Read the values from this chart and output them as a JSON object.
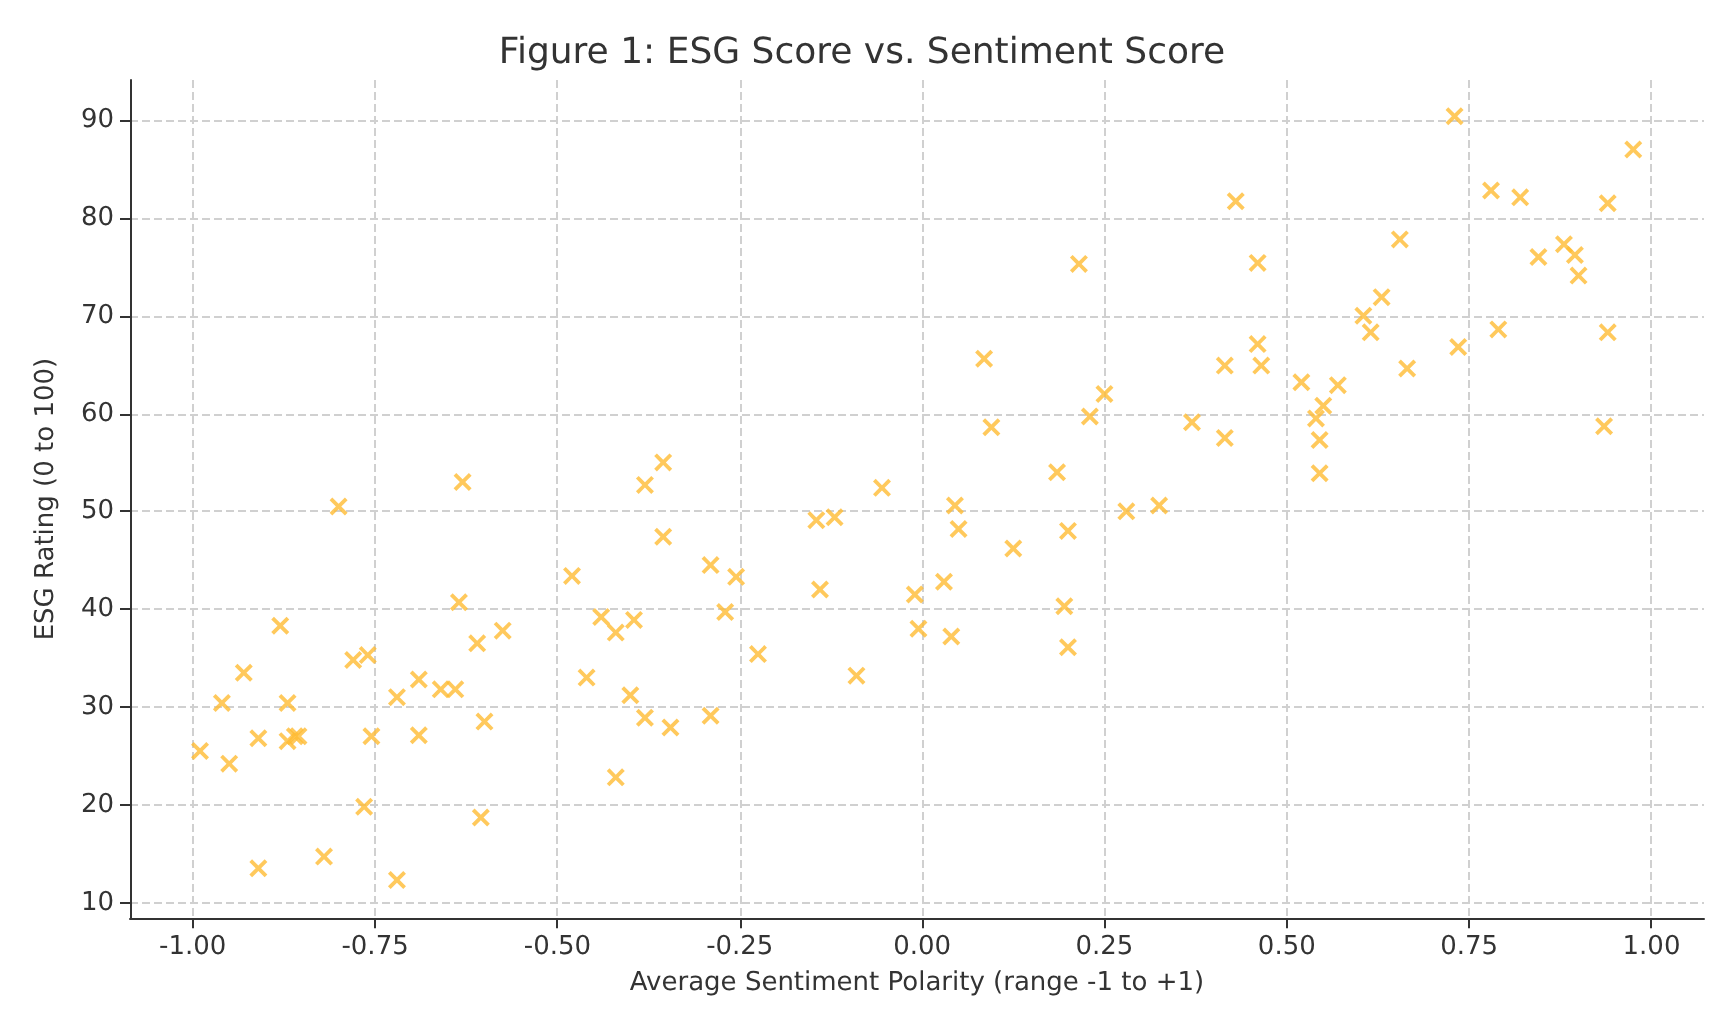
{
  "chart_data": {
    "type": "scatter",
    "title": "Figure 1: ESG Score vs. Sentiment Score",
    "xlabel": "Average Sentiment Polarity (range -1 to +1)",
    "ylabel": "ESG Rating (0 to 100)",
    "x": [
      -0.99,
      -0.96,
      -0.95,
      -0.93,
      -0.91,
      -0.91,
      -0.88,
      -0.87,
      -0.87,
      -0.86,
      -0.855,
      -0.82,
      -0.8,
      -0.78,
      -0.765,
      -0.76,
      -0.755,
      -0.72,
      -0.72,
      -0.69,
      -0.69,
      -0.66,
      -0.64,
      -0.635,
      -0.63,
      -0.61,
      -0.605,
      -0.6,
      -0.575,
      -0.48,
      -0.46,
      -0.44,
      -0.42,
      -0.42,
      -0.4,
      -0.395,
      -0.38,
      -0.38,
      -0.355,
      -0.355,
      -0.345,
      -0.29,
      -0.29,
      -0.27,
      -0.255,
      -0.225,
      -0.145,
      -0.14,
      -0.12,
      -0.09,
      -0.055,
      -0.01,
      -0.005,
      0.03,
      0.04,
      0.045,
      0.05,
      0.085,
      0.095,
      0.125,
      0.185,
      0.195,
      0.2,
      0.2,
      0.215,
      0.23,
      0.25,
      0.28,
      0.325,
      0.37,
      0.415,
      0.415,
      0.43,
      0.46,
      0.46,
      0.465,
      0.52,
      0.54,
      0.545,
      0.545,
      0.55,
      0.57,
      0.605,
      0.615,
      0.63,
      0.655,
      0.665,
      0.73,
      0.735,
      0.78,
      0.79,
      0.82,
      0.845,
      0.88,
      0.895,
      0.9,
      0.935,
      0.94,
      0.94,
      0.975
    ],
    "values": [
      25.5,
      30.4,
      24.2,
      33.5,
      13.5,
      26.8,
      38.3,
      30.4,
      26.5,
      27,
      27,
      14.7,
      50.5,
      34.8,
      19.8,
      35.3,
      27,
      31,
      12.3,
      32.8,
      27.1,
      31.8,
      31.8,
      40.7,
      53,
      36.5,
      18.7,
      28.5,
      37.8,
      43.4,
      33,
      39.2,
      37.6,
      22.8,
      31.2,
      38.9,
      52.7,
      28.9,
      55,
      47.4,
      27.9,
      44.5,
      29.1,
      39.7,
      43.3,
      35.4,
      49.1,
      42,
      49.4,
      33.2,
      52.4,
      41.5,
      38,
      42.8,
      37.2,
      50.6,
      48.2,
      65.6,
      58.6,
      46.2,
      54,
      40.3,
      36.1,
      48,
      75.3,
      59.7,
      62,
      50,
      50.6,
      59.1,
      57.5,
      64.9,
      81.7,
      75.4,
      67.1,
      64.9,
      63.2,
      59.5,
      57.3,
      53.9,
      60.8,
      62.9,
      70,
      68.3,
      71.9,
      77.8,
      64.6,
      90.4,
      66.8,
      82.8,
      68.6,
      82.1,
      76,
      77.3,
      76.2,
      74.1,
      58.7,
      81.5,
      68.3,
      87
    ],
    "color": "#ffbb33",
    "marker": "cross",
    "grid": true,
    "xlim": [
      -1.086,
      1.072
    ],
    "ylim": [
      8.4,
      94.1
    ],
    "xticks": [
      {
        "value": -1,
        "label": "-1.00"
      },
      {
        "value": -0.75,
        "label": "-0.75"
      },
      {
        "value": -0.5,
        "label": "-0.50"
      },
      {
        "value": -0.25,
        "label": "-0.25"
      },
      {
        "value": 0,
        "label": "0.00"
      },
      {
        "value": 0.25,
        "label": "0.25"
      },
      {
        "value": 0.5,
        "label": "0.50"
      },
      {
        "value": 0.75,
        "label": "0.75"
      },
      {
        "value": 1,
        "label": "1.00"
      }
    ],
    "yticks": [
      10,
      20,
      30,
      40,
      50,
      60,
      70,
      80,
      90
    ]
  }
}
